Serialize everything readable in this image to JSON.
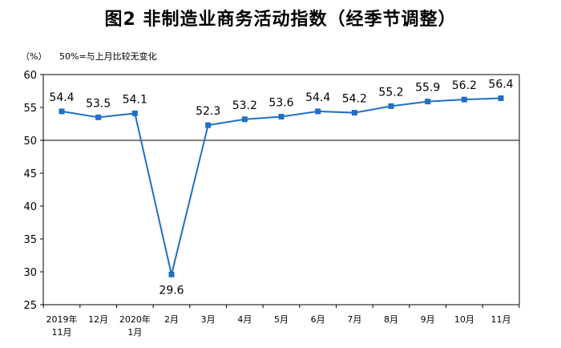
{
  "title": "图2  非制造业商务活动指数（经季节调整）",
  "unit_label": "（%）",
  "note": "50%=与上月比较无变化",
  "chart_data": {
    "type": "line",
    "title": "图2  非制造业商务活动指数（经季节调整）",
    "ylabel": "（%）",
    "xlabel": "",
    "categories": [
      "2019年\n11月",
      "12月",
      "2020年\n1月",
      "2月",
      "3月",
      "4月",
      "5月",
      "6月",
      "7月",
      "8月",
      "9月",
      "10月",
      "11月"
    ],
    "values": [
      54.4,
      53.5,
      54.1,
      29.6,
      52.3,
      53.2,
      53.6,
      54.4,
      54.2,
      55.2,
      55.9,
      56.2,
      56.4
    ],
    "yticks": [
      25,
      30,
      35,
      40,
      45,
      50,
      55,
      60
    ],
    "ylim": [
      25,
      60
    ],
    "reference_line": 50,
    "grid": false,
    "legend": "none",
    "colors": {
      "line": "#1f6fc5",
      "marker": "#1f6fc5",
      "axis": "#000000"
    }
  }
}
